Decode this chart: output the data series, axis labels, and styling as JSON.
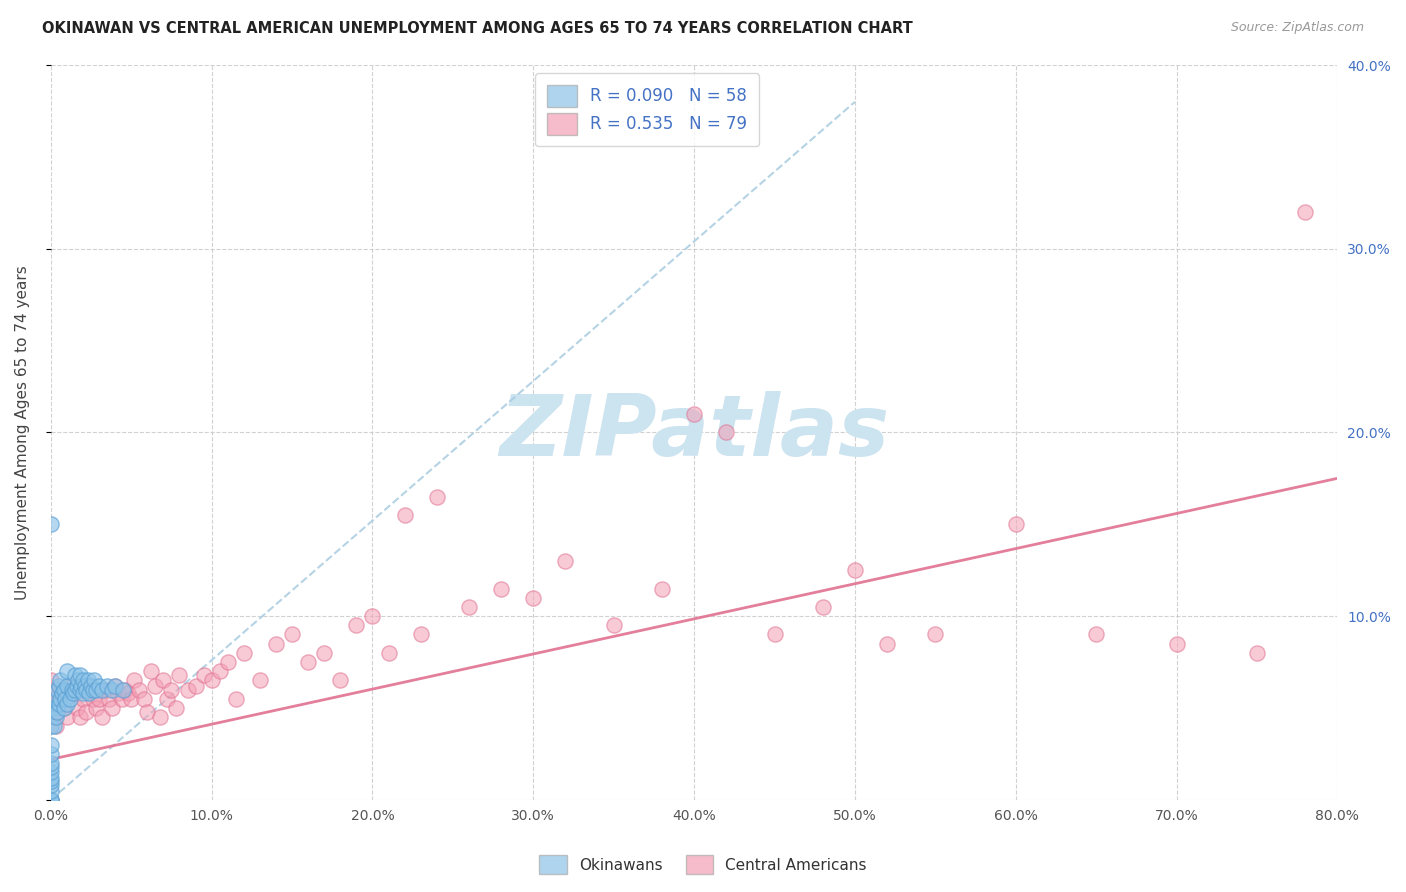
{
  "title": "OKINAWAN VS CENTRAL AMERICAN UNEMPLOYMENT AMONG AGES 65 TO 74 YEARS CORRELATION CHART",
  "source": "Source: ZipAtlas.com",
  "ylabel": "Unemployment Among Ages 65 to 74 years",
  "xlim": [
    0,
    0.8
  ],
  "ylim": [
    0,
    0.4
  ],
  "okinawan_color": "#8ec4e8",
  "okinawan_edge": "#5a9fd4",
  "central_color": "#f4a0b5",
  "central_edge": "#e07090",
  "trend_okin_color": "#a8cce0",
  "trend_cent_color": "#e07090",
  "okinawan_R": 0.09,
  "okinawan_N": 58,
  "central_R": 0.535,
  "central_N": 79,
  "legend_label_okinawan": "Okinawans",
  "legend_label_central": "Central Americans",
  "right_axis_color": "#4472c4",
  "title_color": "#222222",
  "source_color": "#999999",
  "watermark_color": "#cce3f0",
  "grid_color": "#cccccc",
  "okin_x": [
    0.0,
    0.0,
    0.0,
    0.0,
    0.0,
    0.0,
    0.0,
    0.0,
    0.0,
    0.0,
    0.0,
    0.0,
    0.0,
    0.0,
    0.0,
    0.002,
    0.002,
    0.003,
    0.003,
    0.004,
    0.004,
    0.005,
    0.005,
    0.006,
    0.006,
    0.007,
    0.008,
    0.008,
    0.009,
    0.01,
    0.01,
    0.01,
    0.012,
    0.013,
    0.014,
    0.015,
    0.015,
    0.016,
    0.017,
    0.018,
    0.018,
    0.019,
    0.02,
    0.02,
    0.021,
    0.022,
    0.023,
    0.024,
    0.025,
    0.026,
    0.027,
    0.028,
    0.03,
    0.032,
    0.035,
    0.038,
    0.04,
    0.045
  ],
  "okin_y": [
    0.0,
    0.0,
    0.0,
    0.005,
    0.008,
    0.01,
    0.012,
    0.015,
    0.018,
    0.02,
    0.025,
    0.03,
    0.04,
    0.05,
    0.15,
    0.04,
    0.05,
    0.045,
    0.055,
    0.048,
    0.06,
    0.052,
    0.062,
    0.055,
    0.065,
    0.058,
    0.05,
    0.06,
    0.055,
    0.052,
    0.062,
    0.07,
    0.055,
    0.06,
    0.058,
    0.06,
    0.068,
    0.062,
    0.065,
    0.06,
    0.068,
    0.062,
    0.058,
    0.065,
    0.062,
    0.06,
    0.065,
    0.058,
    0.062,
    0.06,
    0.065,
    0.06,
    0.062,
    0.06,
    0.062,
    0.06,
    0.062,
    0.06
  ],
  "cent_x": [
    0.0,
    0.0,
    0.0,
    0.002,
    0.003,
    0.005,
    0.006,
    0.008,
    0.01,
    0.012,
    0.014,
    0.016,
    0.018,
    0.02,
    0.022,
    0.024,
    0.026,
    0.028,
    0.03,
    0.032,
    0.034,
    0.036,
    0.038,
    0.04,
    0.042,
    0.044,
    0.046,
    0.048,
    0.05,
    0.052,
    0.055,
    0.058,
    0.06,
    0.062,
    0.065,
    0.068,
    0.07,
    0.072,
    0.075,
    0.078,
    0.08,
    0.085,
    0.09,
    0.095,
    0.1,
    0.105,
    0.11,
    0.115,
    0.12,
    0.13,
    0.14,
    0.15,
    0.16,
    0.17,
    0.18,
    0.19,
    0.2,
    0.21,
    0.22,
    0.23,
    0.24,
    0.26,
    0.28,
    0.3,
    0.32,
    0.35,
    0.38,
    0.4,
    0.42,
    0.45,
    0.48,
    0.5,
    0.52,
    0.55,
    0.6,
    0.65,
    0.7,
    0.75,
    0.78
  ],
  "cent_y": [
    0.055,
    0.06,
    0.065,
    0.045,
    0.04,
    0.055,
    0.06,
    0.05,
    0.045,
    0.062,
    0.058,
    0.05,
    0.045,
    0.055,
    0.048,
    0.062,
    0.055,
    0.05,
    0.055,
    0.045,
    0.06,
    0.055,
    0.05,
    0.062,
    0.058,
    0.055,
    0.06,
    0.058,
    0.055,
    0.065,
    0.06,
    0.055,
    0.048,
    0.07,
    0.062,
    0.045,
    0.065,
    0.055,
    0.06,
    0.05,
    0.068,
    0.06,
    0.062,
    0.068,
    0.065,
    0.07,
    0.075,
    0.055,
    0.08,
    0.065,
    0.085,
    0.09,
    0.075,
    0.08,
    0.065,
    0.095,
    0.1,
    0.08,
    0.155,
    0.09,
    0.165,
    0.105,
    0.115,
    0.11,
    0.13,
    0.095,
    0.115,
    0.21,
    0.2,
    0.09,
    0.105,
    0.125,
    0.085,
    0.09,
    0.15,
    0.09,
    0.085,
    0.08,
    0.32
  ],
  "trend_okin_x0": 0.0,
  "trend_okin_y0": 0.0,
  "trend_okin_x1": 0.5,
  "trend_okin_y1": 0.38,
  "trend_cent_x0": 0.0,
  "trend_cent_y0": 0.022,
  "trend_cent_x1": 0.8,
  "trend_cent_y1": 0.175
}
